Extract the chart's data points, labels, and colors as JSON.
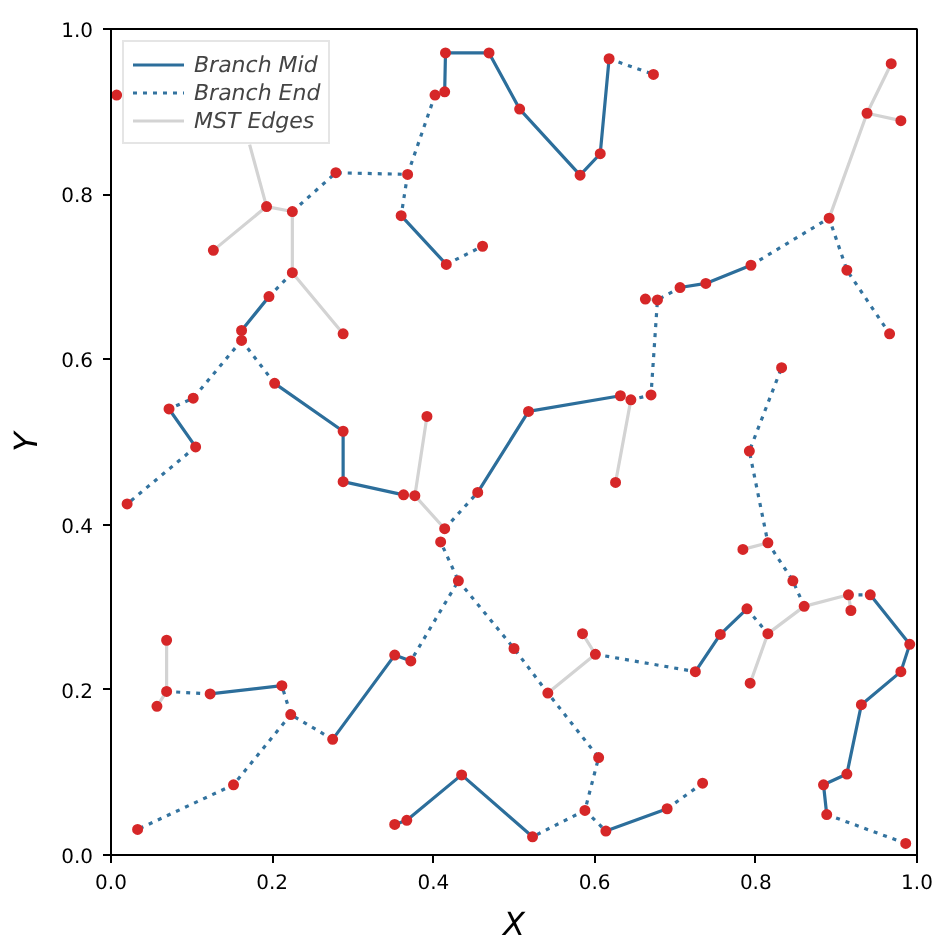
{
  "chart_data": {
    "type": "line",
    "xlabel": "X",
    "ylabel": "Y",
    "legend": "top left",
    "grid": false,
    "xlim": [
      0,
      1
    ],
    "ylim": [
      0,
      1
    ],
    "xticks": [
      {
        "value": 0,
        "label": "0.0"
      },
      {
        "value": 0.2,
        "label": "0.2"
      },
      {
        "value": 0.4,
        "label": "0.4"
      },
      {
        "value": 0.6,
        "label": "0.6"
      },
      {
        "value": 0.8,
        "label": "0.8"
      },
      {
        "value": 1,
        "label": "1.0"
      }
    ],
    "yticks": [
      {
        "value": 0,
        "label": "0.0"
      },
      {
        "value": 0.2,
        "label": "0.2"
      },
      {
        "value": 0.4,
        "label": "0.4"
      },
      {
        "value": 0.6,
        "label": "0.6"
      },
      {
        "value": 0.8,
        "label": "0.8"
      },
      {
        "value": 1,
        "label": "1.0"
      }
    ],
    "series": [
      {
        "name": "Branch Mid",
        "line_style": "solid",
        "color": "#2c6e9b",
        "x": [
          0.415,
          0.469,
          0.507,
          0.582,
          0.607,
          0.618,
          null,
          0.415,
          0.414,
          null,
          0.36,
          0.416,
          null,
          0.196,
          0.162,
          null,
          0.203,
          0.288,
          0.288,
          0.363,
          null,
          0.072,
          0.105,
          null,
          0.123,
          0.212,
          null,
          0.372,
          0.352,
          0.275,
          null,
          0.455,
          0.518,
          0.632,
          null,
          0.706,
          0.738,
          0.794,
          null,
          0.352,
          0.367,
          0.435,
          0.523,
          null,
          0.614,
          0.69,
          null,
          0.725,
          0.756,
          0.789,
          null,
          0.942,
          0.991,
          0.98,
          0.931,
          0.913,
          0.884,
          0.888
        ],
        "values": [
          0.971,
          0.971,
          0.903,
          0.823,
          0.849,
          0.964,
          null,
          0.971,
          0.924,
          null,
          0.774,
          0.715,
          null,
          0.676,
          0.635,
          null,
          0.571,
          0.513,
          0.452,
          0.436,
          null,
          0.54,
          0.494,
          null,
          0.195,
          0.205,
          null,
          0.235,
          0.242,
          0.14,
          null,
          0.439,
          0.537,
          0.556,
          null,
          0.687,
          0.692,
          0.714,
          null,
          0.037,
          0.042,
          0.097,
          0.022,
          null,
          0.029,
          0.056,
          null,
          0.222,
          0.267,
          0.298,
          null,
          0.315,
          0.255,
          0.222,
          0.182,
          0.098,
          0.085,
          0.049
        ]
      },
      {
        "name": "Branch End",
        "line_style": "dotted",
        "color": "#33739f",
        "x": [
          0.275,
          0.223,
          0.212,
          null,
          0.915,
          0.942,
          null,
          0.618,
          0.673,
          null,
          0.414,
          0.402,
          0.368,
          0.279,
          0.225,
          null,
          0.368,
          0.36,
          null,
          0.416,
          0.461,
          null,
          0.225,
          0.196,
          null,
          0.162,
          0.162,
          0.102,
          0.072,
          null,
          0.162,
          0.203,
          null,
          0.105,
          0.02,
          null,
          0.414,
          0.455,
          null,
          0.414,
          0.409,
          0.431,
          0.372,
          null,
          0.431,
          0.5,
          0.542,
          0.605,
          0.588,
          0.523,
          null,
          0.588,
          0.614,
          null,
          0.223,
          0.152,
          0.033,
          null,
          0.123,
          0.069,
          null,
          0.601,
          0.725,
          null,
          0.789,
          0.815,
          null,
          0.86,
          0.846,
          0.815,
          0.792,
          0.832,
          null,
          0.888,
          0.986,
          null,
          0.69,
          0.734,
          null,
          0.632,
          0.645,
          0.67,
          0.678,
          0.706,
          null,
          0.794,
          0.891,
          0.913,
          0.966
        ],
        "values": [
          0.14,
          0.17,
          0.205,
          null,
          0.315,
          0.315,
          null,
          0.964,
          0.945,
          null,
          0.924,
          0.92,
          0.824,
          0.826,
          0.779,
          null,
          0.824,
          0.774,
          null,
          0.715,
          0.737,
          null,
          0.705,
          0.676,
          null,
          0.635,
          0.623,
          0.553,
          0.54,
          null,
          0.623,
          0.571,
          null,
          0.494,
          0.425,
          null,
          0.395,
          0.439,
          null,
          0.395,
          0.379,
          0.332,
          0.235,
          null,
          0.332,
          0.25,
          0.196,
          0.118,
          0.054,
          0.022,
          null,
          0.054,
          0.029,
          null,
          0.17,
          0.085,
          0.031,
          null,
          0.195,
          0.198,
          null,
          0.243,
          0.222,
          null,
          0.298,
          0.268,
          null,
          0.301,
          0.332,
          0.378,
          0.489,
          0.59,
          null,
          0.049,
          0.014,
          null,
          0.056,
          0.087,
          null,
          0.556,
          0.551,
          0.557,
          0.672,
          0.687,
          null,
          0.714,
          0.771,
          0.708,
          0.631
        ]
      },
      {
        "name": "MST Edges",
        "line_style": "solid",
        "color": "#d3d3d3",
        "x": [
          0.225,
          0.193,
          null,
          0.193,
          0.127,
          null,
          0.193,
          0.172,
          null,
          0.225,
          0.225,
          null,
          0.225,
          0.288,
          null,
          0.363,
          0.377,
          0.392,
          null,
          0.377,
          0.414,
          null,
          0.626,
          0.645,
          null,
          0.542,
          0.601,
          0.585,
          null,
          0.815,
          0.793,
          null,
          0.815,
          0.86,
          0.915,
          0.918,
          null,
          0.815,
          0.784,
          null,
          0.069,
          0.069,
          null,
          0.069,
          0.057,
          null,
          0.891,
          0.938,
          0.968,
          null,
          0.938,
          0.98,
          null,
          0.678,
          0.663
        ],
        "values": [
          0.779,
          0.785,
          null,
          0.785,
          0.732,
          null,
          0.785,
          0.86,
          null,
          0.779,
          0.705,
          null,
          0.705,
          0.631,
          null,
          0.436,
          0.435,
          0.531,
          null,
          0.435,
          0.395,
          null,
          0.451,
          0.551,
          null,
          0.196,
          0.243,
          0.268,
          null,
          0.268,
          0.208,
          null,
          0.268,
          0.301,
          0.315,
          0.296,
          null,
          0.378,
          0.37,
          null,
          0.198,
          0.26,
          null,
          0.198,
          0.18,
          null,
          0.771,
          0.898,
          0.958,
          null,
          0.898,
          0.889,
          null,
          0.672,
          0.673
        ]
      },
      {
        "type": "scatter",
        "marker": "circle",
        "color": "#d62728",
        "x": [
          0.007,
          0.415,
          0.469,
          0.507,
          0.582,
          0.607,
          0.618,
          0.673,
          0.414,
          0.402,
          0.368,
          0.279,
          0.225,
          0.36,
          0.416,
          0.461,
          0.193,
          0.127,
          0.225,
          0.288,
          0.196,
          0.162,
          0.162,
          0.102,
          0.072,
          0.105,
          0.203,
          0.288,
          0.288,
          0.363,
          0.377,
          0.392,
          0.414,
          0.455,
          0.409,
          0.431,
          0.5,
          0.372,
          0.352,
          0.275,
          0.223,
          0.212,
          0.123,
          0.069,
          0.069,
          0.057,
          0.152,
          0.033,
          0.02,
          0.352,
          0.367,
          0.435,
          0.523,
          0.588,
          0.605,
          0.542,
          0.601,
          0.585,
          0.725,
          0.756,
          0.789,
          0.815,
          0.793,
          0.86,
          0.846,
          0.815,
          0.784,
          0.792,
          0.832,
          0.915,
          0.918,
          0.942,
          0.991,
          0.98,
          0.931,
          0.913,
          0.884,
          0.888,
          0.986,
          0.614,
          0.69,
          0.734,
          0.626,
          0.645,
          0.632,
          0.67,
          0.518,
          0.678,
          0.663,
          0.706,
          0.738,
          0.794,
          0.891,
          0.913,
          0.966,
          0.938,
          0.968,
          0.98
        ],
        "values": [
          0.92,
          0.971,
          0.971,
          0.903,
          0.823,
          0.849,
          0.964,
          0.945,
          0.924,
          0.92,
          0.824,
          0.826,
          0.779,
          0.774,
          0.715,
          0.737,
          0.785,
          0.732,
          0.705,
          0.631,
          0.676,
          0.635,
          0.623,
          0.553,
          0.54,
          0.494,
          0.571,
          0.513,
          0.452,
          0.436,
          0.435,
          0.531,
          0.395,
          0.439,
          0.379,
          0.332,
          0.25,
          0.235,
          0.242,
          0.14,
          0.17,
          0.205,
          0.195,
          0.198,
          0.26,
          0.18,
          0.085,
          0.031,
          0.425,
          0.037,
          0.042,
          0.097,
          0.022,
          0.054,
          0.118,
          0.196,
          0.243,
          0.268,
          0.222,
          0.267,
          0.298,
          0.268,
          0.208,
          0.301,
          0.332,
          0.378,
          0.37,
          0.489,
          0.59,
          0.315,
          0.296,
          0.315,
          0.255,
          0.222,
          0.182,
          0.098,
          0.085,
          0.049,
          0.014,
          0.029,
          0.056,
          0.087,
          0.451,
          0.551,
          0.556,
          0.557,
          0.537,
          0.672,
          0.673,
          0.687,
          0.692,
          0.714,
          0.771,
          0.708,
          0.631,
          0.898,
          0.958,
          0.889
        ]
      }
    ]
  }
}
